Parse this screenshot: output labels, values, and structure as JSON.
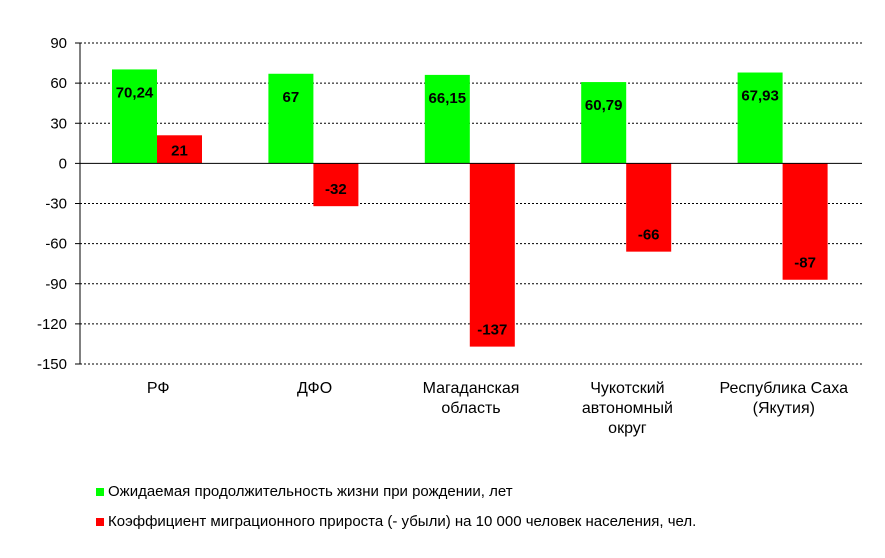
{
  "chart_data": {
    "type": "bar",
    "categories": [
      [
        "РФ"
      ],
      [
        "ДФО"
      ],
      [
        "Магаданская",
        "область"
      ],
      [
        "Чукотский",
        "автономный",
        "округ"
      ],
      [
        "Республика Саха",
        "(Якутия)"
      ]
    ],
    "series": [
      {
        "name": "Ожидаемая продолжительность жизни при рождении, лет",
        "color": "#00ff00",
        "values": [
          70.24,
          67,
          66.15,
          60.79,
          67.93
        ],
        "labels": [
          "70,24",
          "67",
          "66,15",
          "60,79",
          "67,93"
        ]
      },
      {
        "name": "Коэффициент миграционного прироста (- убыли) на 10 000 человек населения, чел.",
        "color": "#ff0000",
        "values": [
          21,
          -32,
          -137,
          -66,
          -87
        ],
        "labels": [
          "21",
          "-32",
          "-137",
          "-66",
          "-87"
        ]
      }
    ],
    "ylim": [
      -150,
      90
    ],
    "yticks": [
      90,
      60,
      30,
      0,
      -30,
      -60,
      -90,
      -120,
      -150
    ],
    "grid": true,
    "legend_position": "bottom"
  }
}
